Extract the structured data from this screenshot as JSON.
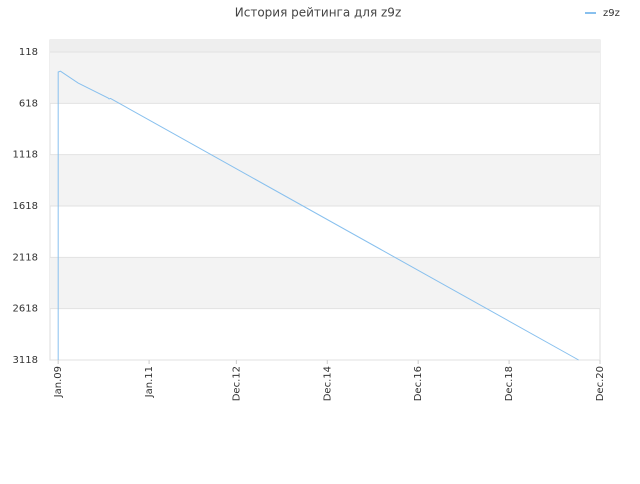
{
  "chart_data": {
    "type": "line",
    "title": "История рейтинга для z9z",
    "series": [
      {
        "name": "z9z",
        "color": "#88c0ee",
        "x": [
          2009.0,
          2009.0,
          2009.05,
          2009.44,
          2010.1,
          2010.12,
          2010.15,
          2020.45
        ],
        "values": [
          3118,
          313,
          305,
          420,
          566,
          575,
          570,
          3118
        ]
      }
    ],
    "xlim": [
      2008.82,
      2020.92
    ],
    "xticks": [
      {
        "value": 2009.0,
        "label": "Jan.09"
      },
      {
        "value": 2011.0,
        "label": "Jan.11"
      },
      {
        "value": 2012.92,
        "label": "Dec.12"
      },
      {
        "value": 2014.92,
        "label": "Dec.14"
      },
      {
        "value": 2016.92,
        "label": "Dec.16"
      },
      {
        "value": 2018.92,
        "label": "Dec.18"
      },
      {
        "value": 2020.92,
        "label": "Dec.20"
      }
    ],
    "ylim": [
      3118,
      1
    ],
    "yticks": [
      118,
      618,
      1118,
      1618,
      2118,
      2618,
      3118
    ],
    "grid": true,
    "legend": "top-right"
  }
}
